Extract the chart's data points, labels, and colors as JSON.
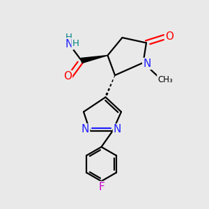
{
  "bg_color": "#e9e9e9",
  "atom_colors": {
    "C": "#000000",
    "N": "#2020ff",
    "O": "#ff0000",
    "F": "#cc00cc",
    "H": "#008080"
  },
  "bond_color": "#000000",
  "bond_width": 1.6,
  "figsize": [
    3.0,
    3.0
  ],
  "dpi": 100
}
